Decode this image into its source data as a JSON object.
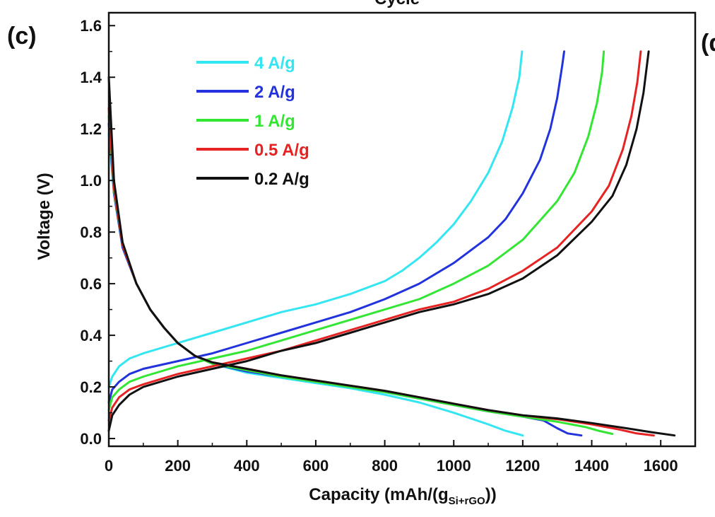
{
  "header": {
    "cropped_title": "Cycle"
  },
  "panel": {
    "label": "(c)",
    "next_label": "(d"
  },
  "chart_data": {
    "type": "line",
    "xlabel_main": "Capacity (mAh/(g",
    "xlabel_sub": "Si+rGO",
    "xlabel_tail": "))",
    "ylabel": "Voltage (V)",
    "xlim": [
      0,
      1700
    ],
    "ylim": [
      -0.03,
      1.65
    ],
    "x_ticks": [
      0,
      200,
      400,
      600,
      800,
      1000,
      1200,
      1400,
      1600
    ],
    "x_tick_labels": [
      "0",
      "200",
      "400",
      "600",
      "800",
      "1000",
      "1200",
      "1400",
      "1600"
    ],
    "y_ticks": [
      0.0,
      0.2,
      0.4,
      0.6,
      0.8,
      1.0,
      1.2,
      1.4,
      1.6
    ],
    "y_tick_labels": [
      "0.0",
      "0.2",
      "0.4",
      "0.6",
      "0.8",
      "1.0",
      "1.2",
      "1.4",
      "1.6"
    ],
    "grid": false,
    "legend_position": "top-left",
    "series": [
      {
        "name": "4 A/g",
        "color": "#33e6f2",
        "discharge": [
          [
            0,
            1.18
          ],
          [
            15,
            0.95
          ],
          [
            40,
            0.74
          ],
          [
            80,
            0.6
          ],
          [
            120,
            0.5
          ],
          [
            160,
            0.43
          ],
          [
            200,
            0.37
          ],
          [
            250,
            0.32
          ],
          [
            300,
            0.29
          ],
          [
            400,
            0.255
          ],
          [
            500,
            0.235
          ],
          [
            600,
            0.215
          ],
          [
            700,
            0.195
          ],
          [
            800,
            0.17
          ],
          [
            900,
            0.14
          ],
          [
            1000,
            0.1
          ],
          [
            1100,
            0.055
          ],
          [
            1150,
            0.03
          ],
          [
            1200,
            0.012
          ]
        ],
        "charge": [
          [
            0,
            0.2
          ],
          [
            10,
            0.24
          ],
          [
            30,
            0.28
          ],
          [
            60,
            0.31
          ],
          [
            100,
            0.33
          ],
          [
            200,
            0.37
          ],
          [
            300,
            0.41
          ],
          [
            400,
            0.45
          ],
          [
            500,
            0.49
          ],
          [
            600,
            0.52
          ],
          [
            700,
            0.56
          ],
          [
            800,
            0.61
          ],
          [
            850,
            0.65
          ],
          [
            900,
            0.7
          ],
          [
            950,
            0.76
          ],
          [
            1000,
            0.83
          ],
          [
            1050,
            0.92
          ],
          [
            1100,
            1.03
          ],
          [
            1140,
            1.15
          ],
          [
            1170,
            1.28
          ],
          [
            1190,
            1.4
          ],
          [
            1198,
            1.5
          ]
        ]
      },
      {
        "name": "2 A/g",
        "color": "#2233dd",
        "discharge": [
          [
            0,
            1.22
          ],
          [
            15,
            0.95
          ],
          [
            40,
            0.74
          ],
          [
            80,
            0.6
          ],
          [
            120,
            0.5
          ],
          [
            160,
            0.43
          ],
          [
            200,
            0.37
          ],
          [
            250,
            0.32
          ],
          [
            300,
            0.29
          ],
          [
            400,
            0.26
          ],
          [
            500,
            0.24
          ],
          [
            600,
            0.22
          ],
          [
            700,
            0.2
          ],
          [
            800,
            0.18
          ],
          [
            900,
            0.155
          ],
          [
            1000,
            0.13
          ],
          [
            1100,
            0.105
          ],
          [
            1200,
            0.085
          ],
          [
            1260,
            0.07
          ],
          [
            1300,
            0.04
          ],
          [
            1330,
            0.02
          ],
          [
            1370,
            0.012
          ]
        ],
        "charge": [
          [
            0,
            0.14
          ],
          [
            10,
            0.19
          ],
          [
            30,
            0.22
          ],
          [
            60,
            0.25
          ],
          [
            100,
            0.27
          ],
          [
            200,
            0.3
          ],
          [
            300,
            0.33
          ],
          [
            400,
            0.37
          ],
          [
            500,
            0.41
          ],
          [
            600,
            0.45
          ],
          [
            700,
            0.49
          ],
          [
            800,
            0.54
          ],
          [
            900,
            0.6
          ],
          [
            1000,
            0.68
          ],
          [
            1100,
            0.78
          ],
          [
            1150,
            0.85
          ],
          [
            1200,
            0.95
          ],
          [
            1250,
            1.08
          ],
          [
            1280,
            1.2
          ],
          [
            1300,
            1.32
          ],
          [
            1315,
            1.45
          ],
          [
            1320,
            1.5
          ]
        ]
      },
      {
        "name": "1 A/g",
        "color": "#33e633",
        "discharge": [
          [
            0,
            1.25
          ],
          [
            15,
            0.96
          ],
          [
            40,
            0.75
          ],
          [
            80,
            0.6
          ],
          [
            120,
            0.5
          ],
          [
            160,
            0.43
          ],
          [
            200,
            0.37
          ],
          [
            250,
            0.32
          ],
          [
            300,
            0.29
          ],
          [
            400,
            0.265
          ],
          [
            500,
            0.24
          ],
          [
            600,
            0.22
          ],
          [
            700,
            0.2
          ],
          [
            800,
            0.18
          ],
          [
            900,
            0.155
          ],
          [
            1000,
            0.13
          ],
          [
            1100,
            0.105
          ],
          [
            1200,
            0.085
          ],
          [
            1300,
            0.065
          ],
          [
            1380,
            0.045
          ],
          [
            1420,
            0.03
          ],
          [
            1460,
            0.018
          ]
        ],
        "charge": [
          [
            0,
            0.11
          ],
          [
            10,
            0.16
          ],
          [
            30,
            0.19
          ],
          [
            60,
            0.22
          ],
          [
            100,
            0.24
          ],
          [
            200,
            0.28
          ],
          [
            300,
            0.31
          ],
          [
            400,
            0.34
          ],
          [
            500,
            0.38
          ],
          [
            600,
            0.42
          ],
          [
            700,
            0.46
          ],
          [
            800,
            0.5
          ],
          [
            900,
            0.54
          ],
          [
            1000,
            0.6
          ],
          [
            1100,
            0.67
          ],
          [
            1200,
            0.77
          ],
          [
            1300,
            0.92
          ],
          [
            1350,
            1.03
          ],
          [
            1390,
            1.17
          ],
          [
            1415,
            1.3
          ],
          [
            1430,
            1.42
          ],
          [
            1435,
            1.5
          ]
        ]
      },
      {
        "name": "0.5 A/g",
        "color": "#e62222",
        "discharge": [
          [
            0,
            1.28
          ],
          [
            15,
            0.97
          ],
          [
            40,
            0.75
          ],
          [
            80,
            0.6
          ],
          [
            120,
            0.5
          ],
          [
            160,
            0.43
          ],
          [
            200,
            0.37
          ],
          [
            250,
            0.32
          ],
          [
            300,
            0.295
          ],
          [
            400,
            0.27
          ],
          [
            500,
            0.245
          ],
          [
            600,
            0.225
          ],
          [
            700,
            0.205
          ],
          [
            800,
            0.185
          ],
          [
            900,
            0.16
          ],
          [
            1000,
            0.135
          ],
          [
            1100,
            0.11
          ],
          [
            1200,
            0.09
          ],
          [
            1300,
            0.075
          ],
          [
            1400,
            0.055
          ],
          [
            1480,
            0.035
          ],
          [
            1530,
            0.02
          ],
          [
            1580,
            0.012
          ]
        ],
        "charge": [
          [
            0,
            0.07
          ],
          [
            10,
            0.12
          ],
          [
            30,
            0.16
          ],
          [
            60,
            0.19
          ],
          [
            100,
            0.21
          ],
          [
            200,
            0.25
          ],
          [
            300,
            0.28
          ],
          [
            400,
            0.31
          ],
          [
            500,
            0.34
          ],
          [
            600,
            0.38
          ],
          [
            700,
            0.42
          ],
          [
            800,
            0.46
          ],
          [
            900,
            0.5
          ],
          [
            1000,
            0.53
          ],
          [
            1100,
            0.58
          ],
          [
            1200,
            0.65
          ],
          [
            1300,
            0.74
          ],
          [
            1400,
            0.88
          ],
          [
            1450,
            0.98
          ],
          [
            1490,
            1.12
          ],
          [
            1515,
            1.25
          ],
          [
            1532,
            1.38
          ],
          [
            1542,
            1.5
          ]
        ]
      },
      {
        "name": "0.2 A/g",
        "color": "#111111",
        "discharge": [
          [
            0,
            1.4
          ],
          [
            15,
            1.0
          ],
          [
            40,
            0.76
          ],
          [
            80,
            0.6
          ],
          [
            120,
            0.5
          ],
          [
            160,
            0.43
          ],
          [
            200,
            0.37
          ],
          [
            250,
            0.32
          ],
          [
            300,
            0.295
          ],
          [
            400,
            0.27
          ],
          [
            500,
            0.245
          ],
          [
            600,
            0.225
          ],
          [
            700,
            0.205
          ],
          [
            800,
            0.185
          ],
          [
            900,
            0.16
          ],
          [
            1000,
            0.135
          ],
          [
            1100,
            0.11
          ],
          [
            1200,
            0.09
          ],
          [
            1300,
            0.078
          ],
          [
            1400,
            0.06
          ],
          [
            1500,
            0.04
          ],
          [
            1570,
            0.025
          ],
          [
            1640,
            0.012
          ]
        ],
        "charge": [
          [
            0,
            0.03
          ],
          [
            10,
            0.09
          ],
          [
            30,
            0.13
          ],
          [
            60,
            0.17
          ],
          [
            100,
            0.2
          ],
          [
            200,
            0.24
          ],
          [
            300,
            0.27
          ],
          [
            400,
            0.3
          ],
          [
            500,
            0.34
          ],
          [
            600,
            0.37
          ],
          [
            700,
            0.41
          ],
          [
            800,
            0.45
          ],
          [
            900,
            0.49
          ],
          [
            1000,
            0.52
          ],
          [
            1100,
            0.56
          ],
          [
            1200,
            0.62
          ],
          [
            1300,
            0.71
          ],
          [
            1400,
            0.84
          ],
          [
            1460,
            0.94
          ],
          [
            1500,
            1.06
          ],
          [
            1530,
            1.2
          ],
          [
            1550,
            1.34
          ],
          [
            1565,
            1.5
          ]
        ]
      }
    ]
  }
}
